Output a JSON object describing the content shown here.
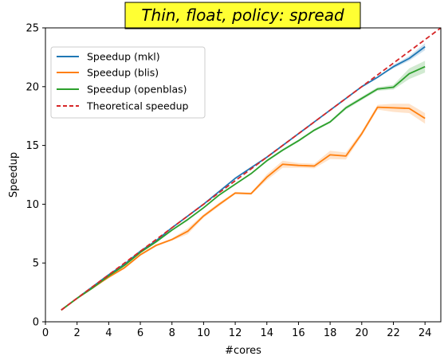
{
  "chart_data": {
    "type": "line",
    "title": "Thin, float, policy: spread",
    "title_box_color": "#ffff33",
    "xlabel": "#cores",
    "ylabel": "Speedup",
    "xlim": [
      0,
      25
    ],
    "ylim": [
      0,
      25
    ],
    "x_ticks": [
      0,
      2,
      4,
      6,
      8,
      10,
      12,
      14,
      16,
      18,
      20,
      22,
      24
    ],
    "y_ticks": [
      0,
      5,
      10,
      15,
      20,
      25
    ],
    "grid": false,
    "legend_position": "upper-left",
    "series": [
      {
        "name": "Speedup (mkl)",
        "color": "#1f77b4",
        "style": "solid",
        "x": [
          1,
          2,
          3,
          4,
          5,
          6,
          7,
          8,
          9,
          10,
          11,
          12,
          13,
          14,
          15,
          16,
          17,
          18,
          19,
          20,
          21,
          22,
          23,
          24
        ],
        "y": [
          1,
          2,
          3,
          4,
          4.9,
          6,
          6.9,
          8,
          9,
          10,
          11.1,
          12.2,
          13.1,
          14,
          15,
          16,
          17,
          18,
          19,
          20,
          20.8,
          21.7,
          22.4,
          23.4
        ],
        "band": [
          0,
          0,
          0,
          0,
          0,
          0,
          0,
          0,
          0,
          0,
          0,
          0,
          0,
          0,
          0,
          0,
          0,
          0,
          0,
          0,
          0,
          0.15,
          0.2,
          0.3
        ]
      },
      {
        "name": "Speedup (blis)",
        "color": "#ff7f0e",
        "style": "solid",
        "x": [
          1,
          2,
          3,
          4,
          5,
          6,
          7,
          8,
          9,
          10,
          11,
          12,
          13,
          14,
          15,
          16,
          17,
          18,
          19,
          20,
          21,
          22,
          23,
          24
        ],
        "y": [
          1,
          2,
          2.9,
          3.8,
          4.6,
          5.7,
          6.5,
          7,
          7.7,
          9,
          10,
          10.95,
          10.9,
          12.3,
          13.4,
          13.3,
          13.25,
          14.2,
          14.1,
          16,
          18.25,
          18.2,
          18.15,
          17.3
        ],
        "band": [
          0,
          0,
          0,
          0.1,
          0.1,
          0.1,
          0.1,
          0.1,
          0.25,
          0.15,
          0.15,
          0.1,
          0.1,
          0.25,
          0.3,
          0.2,
          0.2,
          0.35,
          0.3,
          0.2,
          0.2,
          0.35,
          0.4,
          0.45
        ]
      },
      {
        "name": "Speedup (openblas)",
        "color": "#2ca02c",
        "style": "solid",
        "x": [
          1,
          2,
          3,
          4,
          5,
          6,
          7,
          8,
          9,
          10,
          11,
          12,
          13,
          14,
          15,
          16,
          17,
          18,
          19,
          20,
          21,
          22,
          23,
          24
        ],
        "y": [
          1,
          2,
          2.9,
          3.9,
          4.8,
          5.9,
          6.8,
          7.8,
          8.7,
          9.7,
          10.8,
          11.7,
          12.6,
          13.7,
          14.6,
          15.4,
          16.3,
          17,
          18.2,
          19,
          19.8,
          19.95,
          21.1,
          21.7
        ],
        "band": [
          0,
          0,
          0,
          0,
          0,
          0,
          0,
          0.05,
          0.1,
          0.05,
          0.05,
          0.05,
          0.05,
          0.1,
          0.1,
          0.1,
          0.1,
          0.1,
          0.15,
          0.15,
          0.15,
          0.2,
          0.45,
          0.5
        ]
      },
      {
        "name": "Theoretical speedup",
        "color": "#d62728",
        "style": "dashed",
        "x": [
          1,
          25
        ],
        "y": [
          1,
          25
        ]
      }
    ]
  }
}
